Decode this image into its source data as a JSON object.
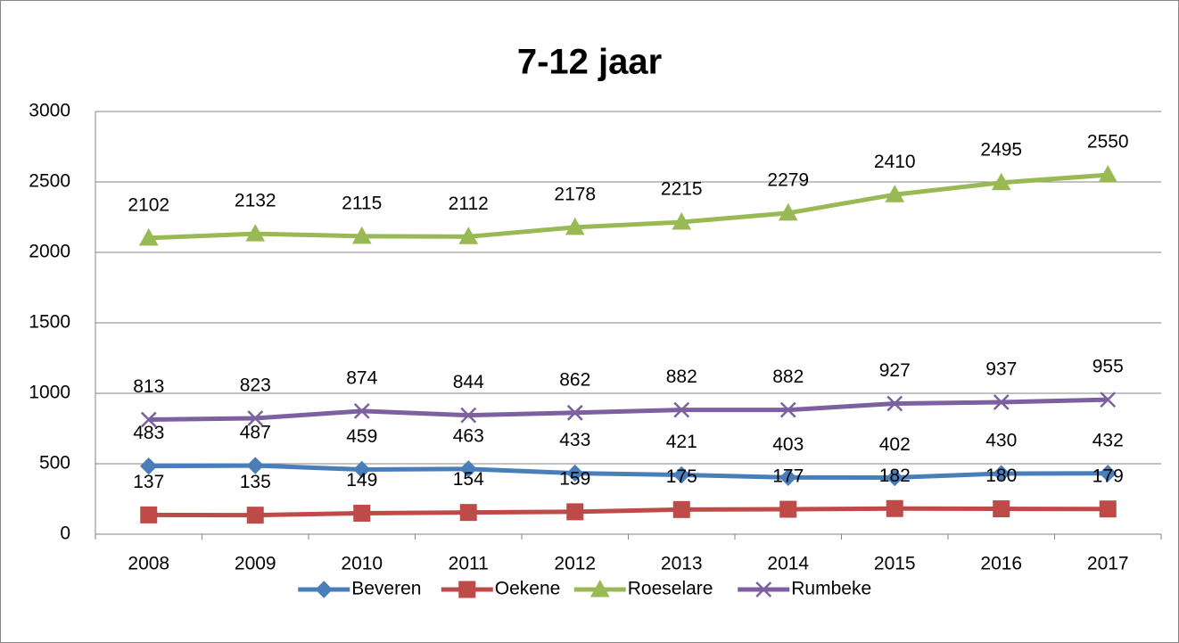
{
  "chart_data": {
    "type": "line",
    "title": "7-12 jaar",
    "categories": [
      "2008",
      "2009",
      "2010",
      "2011",
      "2012",
      "2013",
      "2014",
      "2015",
      "2016",
      "2017"
    ],
    "series": [
      {
        "name": "Beveren",
        "color": "#4a7ebb",
        "marker": "diamond",
        "values": [
          483,
          487,
          459,
          463,
          433,
          421,
          403,
          402,
          430,
          432
        ]
      },
      {
        "name": "Oekene",
        "color": "#be4b48",
        "marker": "square",
        "values": [
          137,
          135,
          149,
          154,
          159,
          175,
          177,
          182,
          180,
          179
        ]
      },
      {
        "name": "Roeselare",
        "color": "#98b954",
        "marker": "triangle",
        "values": [
          2102,
          2132,
          2115,
          2112,
          2178,
          2215,
          2279,
          2410,
          2495,
          2550
        ]
      },
      {
        "name": "Rumbeke",
        "color": "#7d60a0",
        "marker": "x",
        "values": [
          813,
          823,
          874,
          844,
          862,
          882,
          882,
          927,
          937,
          955
        ]
      }
    ],
    "ylim": [
      0,
      3000
    ],
    "yticks": [
      0,
      500,
      1000,
      1500,
      2000,
      2500,
      3000
    ],
    "grid": true,
    "legend": "bottom"
  }
}
